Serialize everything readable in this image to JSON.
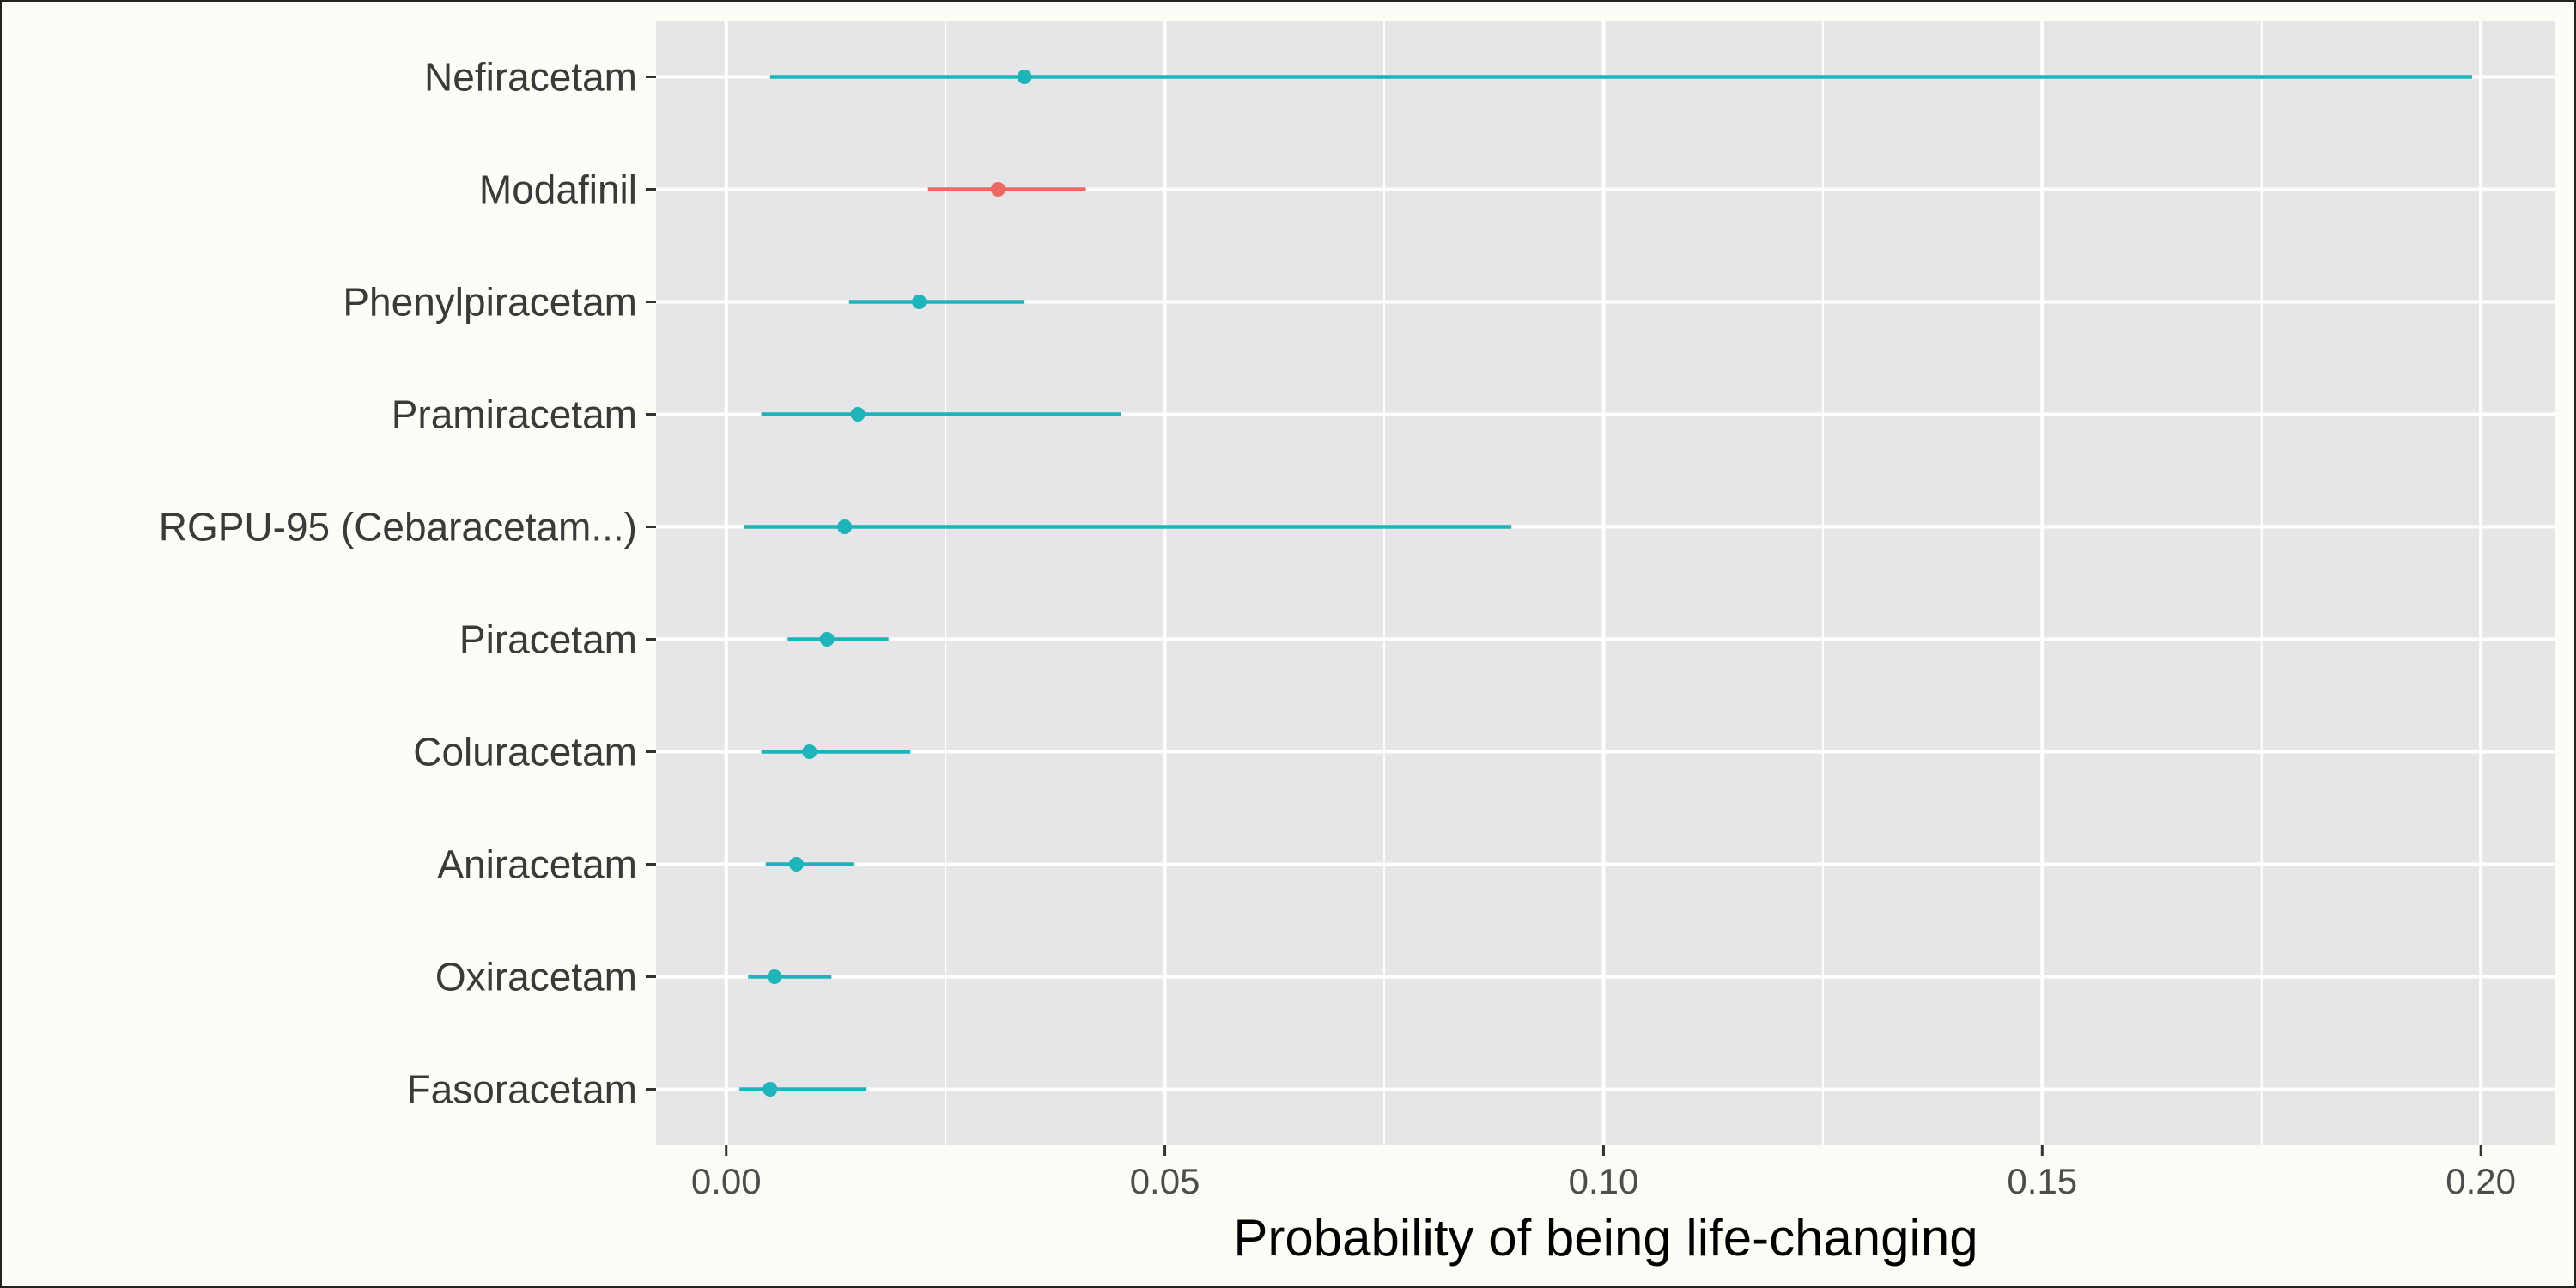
{
  "chart_data": {
    "type": "dot-interval",
    "title": "",
    "xlabel": "Probability of being life-changing",
    "ylabel": "",
    "xlim": [
      -0.008,
      0.2085
    ],
    "x_ticks": [
      0.0,
      0.05,
      0.1,
      0.15,
      0.2
    ],
    "x_tick_labels": [
      "0.00",
      "0.05",
      "0.10",
      "0.15",
      "0.20"
    ],
    "grid": true,
    "legend": "none",
    "panel_background": "#e6e6e9",
    "gridline_color": "#ffffff",
    "colors": {
      "highlight": "#ec6962",
      "default": "#1db5ba"
    },
    "categories": [
      "Nefiracetam",
      "Modafinil",
      "Phenylpiracetam",
      "Pramiracetam",
      "RGPU-95 (Cebaracetam...)",
      "Piracetam",
      "Coluracetam",
      "Aniracetam",
      "Oxiracetam",
      "Fasoracetam"
    ],
    "points": [
      {
        "estimate": 0.034,
        "low": 0.005,
        "high": 0.199,
        "group": "default"
      },
      {
        "estimate": 0.031,
        "low": 0.023,
        "high": 0.041,
        "group": "highlight"
      },
      {
        "estimate": 0.022,
        "low": 0.014,
        "high": 0.034,
        "group": "default"
      },
      {
        "estimate": 0.015,
        "low": 0.004,
        "high": 0.045,
        "group": "default"
      },
      {
        "estimate": 0.0135,
        "low": 0.002,
        "high": 0.0895,
        "group": "default"
      },
      {
        "estimate": 0.0115,
        "low": 0.007,
        "high": 0.0185,
        "group": "default"
      },
      {
        "estimate": 0.0095,
        "low": 0.004,
        "high": 0.021,
        "group": "default"
      },
      {
        "estimate": 0.008,
        "low": 0.0045,
        "high": 0.0145,
        "group": "default"
      },
      {
        "estimate": 0.0055,
        "low": 0.0025,
        "high": 0.012,
        "group": "default"
      },
      {
        "estimate": 0.005,
        "low": 0.0015,
        "high": 0.016,
        "group": "default"
      }
    ]
  }
}
